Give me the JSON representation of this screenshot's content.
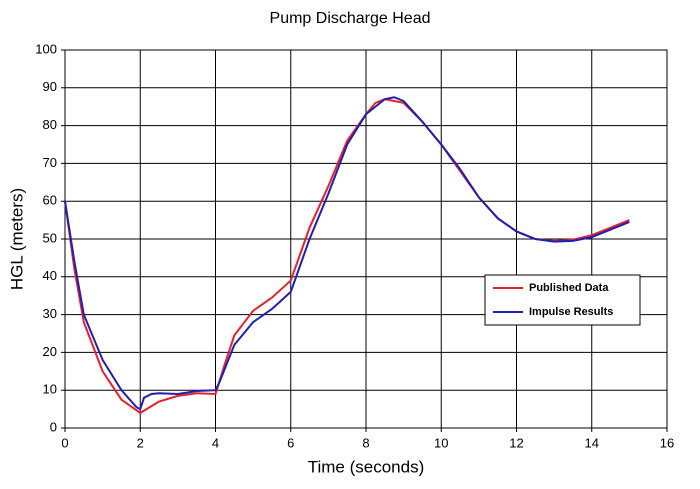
{
  "chart_data": {
    "type": "line",
    "title": "Pump Discharge Head",
    "xlabel": "Time (seconds)",
    "ylabel": "HGL (meters)",
    "xlim": [
      0,
      16
    ],
    "xticks": [
      0,
      2,
      4,
      6,
      8,
      10,
      12,
      14,
      16
    ],
    "ylim": [
      0,
      100
    ],
    "yticks": [
      0,
      10,
      20,
      30,
      40,
      50,
      60,
      70,
      80,
      90,
      100
    ],
    "grid": true,
    "legend": "right",
    "series": [
      {
        "name": "Published Data",
        "color": "#e8202a",
        "x": [
          0,
          0.25,
          0.5,
          1,
          1.5,
          2,
          2.5,
          3,
          3.5,
          4,
          4.25,
          4.5,
          5,
          5.5,
          6,
          6.5,
          7,
          7.5,
          8,
          8.25,
          8.5,
          9,
          9.5,
          10,
          10.5,
          11,
          11.5,
          12,
          12.5,
          13,
          13.5,
          14,
          14.5,
          15
        ],
        "values": [
          60,
          42,
          28,
          15,
          7.5,
          4,
          7,
          8.5,
          9.2,
          9,
          17,
          24.5,
          31,
          34.5,
          39,
          53,
          64,
          76,
          83,
          86,
          87,
          86,
          81,
          75,
          68,
          61,
          55.5,
          52,
          50,
          49.5,
          49.8,
          51,
          53,
          55
        ]
      },
      {
        "name": "Impulse Results",
        "color": "#1f1fb4",
        "x": [
          0,
          0.25,
          0.5,
          1,
          1.5,
          1.9,
          2,
          2.1,
          2.3,
          2.5,
          3,
          3.5,
          4,
          4.1,
          4.5,
          5,
          5.5,
          6,
          6.5,
          7,
          7.5,
          8,
          8.5,
          8.75,
          9,
          9.5,
          10,
          10.5,
          11,
          11.5,
          12,
          12.5,
          13,
          13.5,
          14,
          14.5,
          15
        ],
        "values": [
          60,
          44,
          30,
          18,
          10,
          5.5,
          5,
          8,
          9,
          9.2,
          9,
          9.8,
          10,
          12,
          22,
          28,
          31.5,
          36,
          50,
          62,
          75,
          83,
          87,
          87.5,
          86.5,
          81,
          75,
          68.5,
          61,
          55.5,
          52,
          50,
          49.3,
          49.5,
          50.5,
          52.5,
          54.5
        ]
      }
    ]
  }
}
